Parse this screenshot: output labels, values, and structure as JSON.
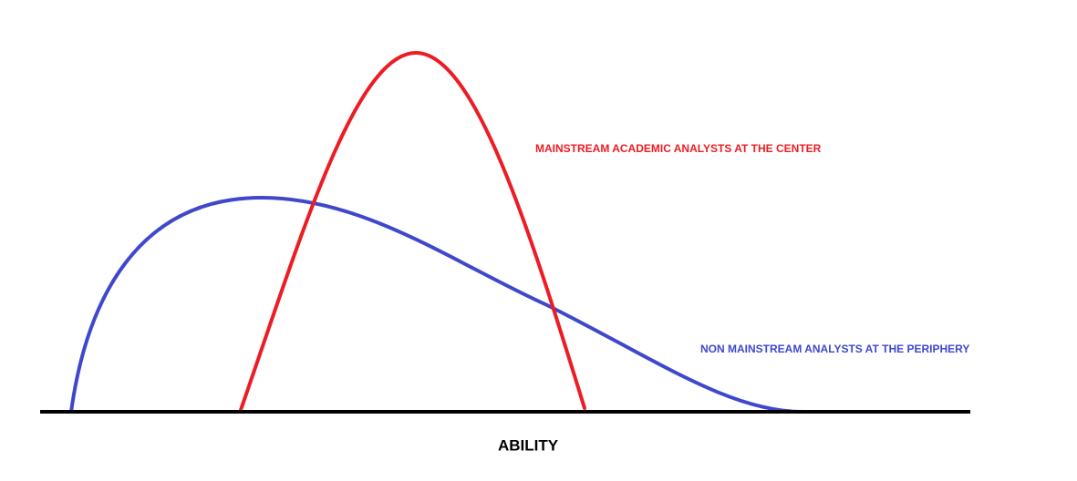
{
  "labels": {
    "mainstream": "MAINSTREAM ACADEMIC ANALYSTS AT THE CENTER",
    "non_mainstream": "NON MAINSTREAM ANALYSTS AT THE PERIPHERY"
  },
  "axis": {
    "label": "ABILITY"
  }
}
